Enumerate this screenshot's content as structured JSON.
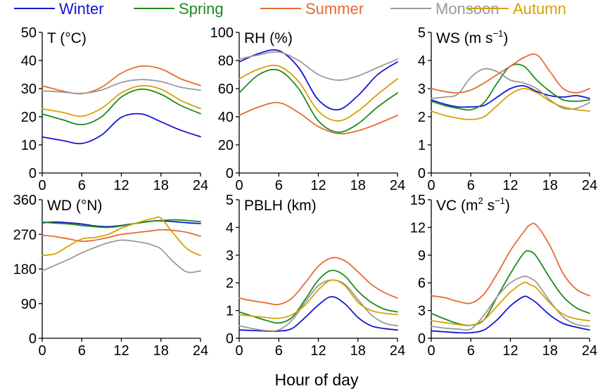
{
  "legend": [
    {
      "name": "Winter",
      "color": "#1515d0"
    },
    {
      "name": "Spring",
      "color": "#1e8a1e"
    },
    {
      "name": "Summer",
      "color": "#e86a33"
    },
    {
      "name": "Monsoon",
      "color": "#9a9a9a"
    },
    {
      "name": "Autumn",
      "color": "#d7a100"
    }
  ],
  "xlabel": "Hour of day",
  "chart_data": [
    {
      "type": "line",
      "title": "T (°C)",
      "title_parts": {
        "main": "T (°C)",
        "sup": "",
        "tail": ""
      },
      "x": [
        0,
        3,
        6,
        9,
        12,
        15,
        18,
        21,
        24
      ],
      "xticks": [
        0,
        6,
        12,
        18,
        24
      ],
      "xlim": [
        0,
        24
      ],
      "ylim": [
        0,
        50
      ],
      "yticks": [
        0,
        10,
        20,
        30,
        40,
        50
      ],
      "series": [
        {
          "name": "Winter",
          "values": [
            12.8,
            11.6,
            10.5,
            13.5,
            19.8,
            21.0,
            18.2,
            15.2,
            12.9
          ]
        },
        {
          "name": "Spring",
          "values": [
            21.0,
            19.0,
            17.2,
            20.0,
            27.0,
            29.8,
            28.0,
            24.0,
            21.1
          ]
        },
        {
          "name": "Summer",
          "values": [
            31.0,
            29.2,
            28.2,
            30.5,
            35.5,
            38.0,
            37.0,
            33.5,
            31.1
          ]
        },
        {
          "name": "Monsoon",
          "values": [
            29.2,
            28.8,
            28.3,
            29.5,
            32.2,
            33.2,
            32.5,
            30.5,
            29.4
          ]
        },
        {
          "name": "Autumn",
          "values": [
            22.8,
            21.6,
            20.2,
            23.0,
            28.5,
            31.0,
            29.8,
            25.8,
            22.9
          ]
        }
      ]
    },
    {
      "type": "line",
      "title": "RH (%)",
      "title_parts": {
        "main": "RH (%)",
        "sup": "",
        "tail": ""
      },
      "x": [
        0,
        3,
        6,
        9,
        12,
        15,
        18,
        21,
        24
      ],
      "xticks": [
        0,
        6,
        12,
        18,
        24
      ],
      "xlim": [
        0,
        24
      ],
      "ylim": [
        0,
        100
      ],
      "yticks": [
        0,
        20,
        40,
        60,
        80,
        100
      ],
      "series": [
        {
          "name": "Winter",
          "values": [
            79,
            85,
            87,
            75,
            52,
            45,
            55,
            70,
            79
          ]
        },
        {
          "name": "Spring",
          "values": [
            57,
            70,
            73,
            60,
            37,
            29,
            35,
            47,
            57
          ]
        },
        {
          "name": "Summer",
          "values": [
            41,
            47,
            50,
            43,
            33,
            28,
            30,
            35,
            41
          ]
        },
        {
          "name": "Monsoon",
          "values": [
            81,
            84,
            86,
            80,
            70,
            66,
            69,
            75,
            81
          ]
        },
        {
          "name": "Autumn",
          "values": [
            67,
            74,
            76,
            65,
            44,
            37,
            44,
            56,
            67
          ]
        }
      ]
    },
    {
      "type": "line",
      "title": "WS (m s-1)",
      "title_parts": {
        "main": "WS (m s",
        "sup": "−1",
        "tail": ")"
      },
      "x": [
        0,
        2,
        4,
        6,
        8,
        10,
        12,
        14,
        16,
        18,
        20,
        22,
        24
      ],
      "xticks": [
        0,
        6,
        12,
        18,
        24
      ],
      "xlim": [
        0,
        24
      ],
      "ylim": [
        0,
        5
      ],
      "yticks": [
        0,
        1,
        2,
        3,
        4,
        5
      ],
      "series": [
        {
          "name": "Winter",
          "values": [
            2.6,
            2.45,
            2.35,
            2.35,
            2.4,
            2.7,
            3.0,
            3.1,
            2.9,
            2.75,
            2.7,
            2.75,
            2.65
          ]
        },
        {
          "name": "Spring",
          "values": [
            2.55,
            2.4,
            2.3,
            2.25,
            2.5,
            3.2,
            3.8,
            3.8,
            3.3,
            2.9,
            2.6,
            2.55,
            2.6
          ]
        },
        {
          "name": "Summer",
          "values": [
            3.0,
            2.9,
            2.85,
            2.95,
            3.2,
            3.5,
            3.8,
            4.1,
            4.2,
            3.6,
            3.0,
            2.85,
            3.0
          ]
        },
        {
          "name": "Monsoon",
          "values": [
            2.65,
            2.7,
            2.8,
            3.4,
            3.7,
            3.6,
            3.3,
            3.2,
            3.0,
            2.6,
            2.3,
            2.3,
            2.5
          ]
        },
        {
          "name": "Autumn",
          "values": [
            2.2,
            2.05,
            1.95,
            1.9,
            2.0,
            2.4,
            2.8,
            3.0,
            2.85,
            2.55,
            2.35,
            2.25,
            2.2
          ]
        }
      ]
    },
    {
      "type": "line",
      "title": "WD (°N)",
      "title_parts": {
        "main": "WD (°N)",
        "sup": "",
        "tail": ""
      },
      "x": [
        0,
        2,
        4,
        6,
        8,
        10,
        12,
        14,
        16,
        17,
        18,
        20,
        22,
        24
      ],
      "xticks": [
        0,
        6,
        12,
        18,
        24
      ],
      "xlim": [
        0,
        24
      ],
      "ylim": [
        0,
        360
      ],
      "yticks": [
        0,
        90,
        180,
        270,
        360
      ],
      "series": [
        {
          "name": "Winter",
          "values": [
            300,
            302,
            300,
            297,
            292,
            290,
            293,
            298,
            303,
            305,
            305,
            303,
            300,
            298
          ]
        },
        {
          "name": "Spring",
          "values": [
            302,
            299,
            297,
            293,
            290,
            288,
            292,
            298,
            303,
            305,
            306,
            308,
            306,
            303
          ]
        },
        {
          "name": "Summer",
          "values": [
            268,
            264,
            258,
            252,
            255,
            262,
            270,
            274,
            278,
            280,
            282,
            280,
            275,
            265
          ]
        },
        {
          "name": "Monsoon",
          "values": [
            175,
            190,
            205,
            222,
            236,
            248,
            255,
            252,
            246,
            240,
            232,
            197,
            172,
            175
          ]
        },
        {
          "name": "Autumn",
          "values": [
            215,
            220,
            240,
            258,
            262,
            270,
            286,
            298,
            308,
            312,
            312,
            270,
            232,
            215
          ]
        }
      ]
    },
    {
      "type": "line",
      "title": "PBLH (km)",
      "title_parts": {
        "main": "PBLH (km)",
        "sup": "",
        "tail": ""
      },
      "x": [
        0,
        2,
        4,
        6,
        8,
        10,
        12,
        14,
        16,
        18,
        20,
        22,
        24
      ],
      "xticks": [
        0,
        6,
        12,
        18,
        24
      ],
      "xlim": [
        0,
        24
      ],
      "ylim": [
        0,
        5
      ],
      "yticks": [
        0,
        1,
        2,
        3,
        4,
        5
      ],
      "series": [
        {
          "name": "Winter",
          "values": [
            0.3,
            0.28,
            0.26,
            0.26,
            0.35,
            0.75,
            1.2,
            1.5,
            1.25,
            0.75,
            0.45,
            0.35,
            0.3
          ]
        },
        {
          "name": "Spring",
          "values": [
            0.95,
            0.8,
            0.65,
            0.55,
            0.75,
            1.4,
            2.1,
            2.45,
            2.25,
            1.7,
            1.3,
            1.05,
            0.95
          ]
        },
        {
          "name": "Summer",
          "values": [
            1.45,
            1.35,
            1.28,
            1.22,
            1.45,
            2.0,
            2.6,
            2.9,
            2.8,
            2.4,
            1.95,
            1.65,
            1.45
          ]
        },
        {
          "name": "Monsoon",
          "values": [
            0.45,
            0.35,
            0.28,
            0.3,
            0.65,
            1.3,
            1.9,
            2.1,
            1.95,
            1.4,
            0.85,
            0.55,
            0.45
          ]
        },
        {
          "name": "Autumn",
          "values": [
            0.85,
            0.8,
            0.75,
            0.72,
            0.85,
            1.2,
            1.75,
            2.1,
            1.9,
            1.3,
            1.0,
            0.9,
            0.85
          ]
        }
      ]
    },
    {
      "type": "line",
      "title": "VC (m2 s-1)",
      "title_parts": {
        "main": "VC (m",
        "sup": "2",
        "tail": " s",
        "sup2": "−1",
        "tail2": ")"
      },
      "x": [
        0,
        2,
        4,
        6,
        8,
        10,
        12,
        14,
        15,
        16,
        18,
        20,
        22,
        24
      ],
      "xticks": [
        0,
        6,
        12,
        18,
        24
      ],
      "xlim": [
        0,
        24
      ],
      "ylim": [
        0,
        15
      ],
      "yticks": [
        0,
        3,
        6,
        9,
        12,
        15
      ],
      "series": [
        {
          "name": "Winter",
          "values": [
            0.8,
            0.7,
            0.6,
            0.6,
            0.9,
            2.0,
            3.5,
            4.5,
            4.3,
            3.8,
            2.5,
            1.6,
            1.2,
            0.9
          ]
        },
        {
          "name": "Spring",
          "values": [
            2.7,
            2.1,
            1.6,
            1.4,
            2.0,
            4.5,
            7.0,
            9.2,
            9.4,
            8.8,
            6.5,
            4.5,
            3.3,
            2.7
          ]
        },
        {
          "name": "Summer",
          "values": [
            4.6,
            4.4,
            4.0,
            3.8,
            4.8,
            7.0,
            9.5,
            11.5,
            12.3,
            12.2,
            10.0,
            7.0,
            5.3,
            4.6
          ]
        },
        {
          "name": "Monsoon",
          "values": [
            1.3,
            1.1,
            1.0,
            1.0,
            2.5,
            4.5,
            6.0,
            6.7,
            6.5,
            6.0,
            4.0,
            2.3,
            1.5,
            1.3
          ]
        },
        {
          "name": "Autumn",
          "values": [
            1.9,
            1.7,
            1.5,
            1.4,
            2.0,
            3.5,
            5.0,
            6.0,
            5.8,
            5.4,
            3.8,
            2.6,
            2.1,
            1.9
          ]
        }
      ]
    }
  ]
}
